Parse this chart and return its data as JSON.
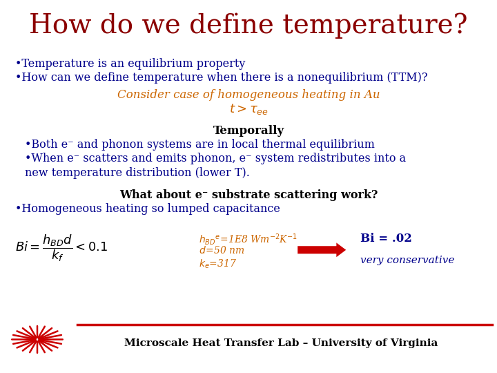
{
  "title": "How do we define temperature?",
  "title_color": "#8B0000",
  "title_fontsize": 28,
  "bg_color": "#FFFFFF",
  "bullet1": "•Temperature is an equilibrium property",
  "bullet2": "•How can we define temperature when there is a nonequilibrium (TTM)?",
  "bullet_color": "#00008B",
  "bullet_fontsize": 11.5,
  "orange_line1": "Consider case of homogeneous heating in Au",
  "orange_color": "#CC6600",
  "orange_fontsize": 12,
  "temporally": "Temporally",
  "temp_color": "#000000",
  "temp_fontsize": 12,
  "both_bullet": "•Both e⁻ and phonon systems are in local thermal equilibrium",
  "when_bullet1": "•When e⁻ scatters and emits phonon, e⁻ system redistributes into a",
  "when_bullet2": "new temperature distribution (lower T).",
  "body_color": "#00008B",
  "body_fontsize": 11.5,
  "what_line": "What about e⁻ substrate scattering work?",
  "what_color": "#000000",
  "what_fontsize": 11.5,
  "homo_bullet": "•Homogeneous heating so lumped capacitance",
  "homo_color": "#00008B",
  "homo_fontsize": 11.5,
  "eq_color": "#000000",
  "param_color": "#CC6600",
  "param_fontsize": 10,
  "bi_result": "Bi = .02",
  "bi_color": "#00008B",
  "bi_fontsize": 12,
  "conservative": "very conservative",
  "cons_color": "#00008B",
  "cons_fontsize": 11,
  "arrow_color": "#CC0000",
  "footer": "Microscale Heat Transfer Lab – University of Virginia",
  "footer_color": "#000000",
  "footer_fontsize": 11,
  "line_color": "#CC0000"
}
